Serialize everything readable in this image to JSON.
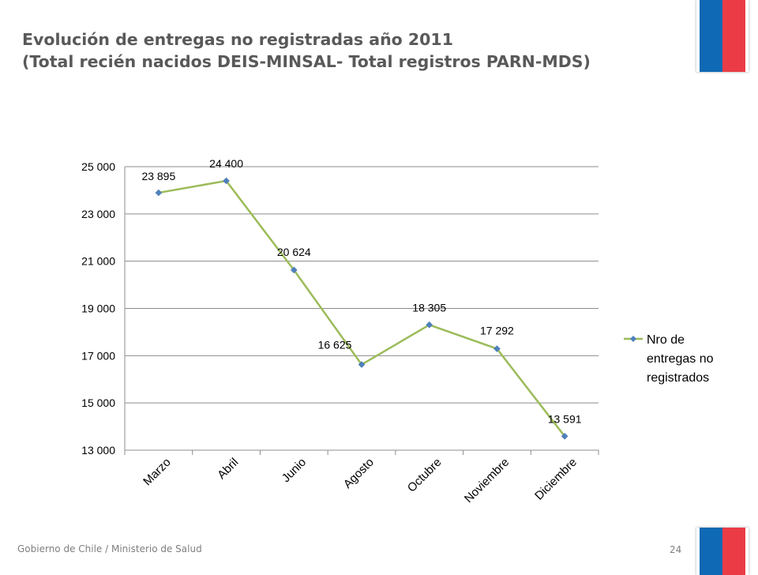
{
  "slide": {
    "title_line1": "Evolución de entregas no registradas año 2011",
    "title_line2": "(Total recién nacidos DEIS-MINSAL- Total registros PARN-MDS)",
    "footer": "Gobierno de Chile / Ministerio de Salud",
    "page_number": "24"
  },
  "colors": {
    "flag_blue": "#0f69b4",
    "flag_red": "#eb3c46",
    "line": "#9bbb59",
    "marker": "#4f81bd"
  },
  "chart_data": {
    "type": "line",
    "categories": [
      "Marzo",
      "Abril",
      "Junio",
      "Agosto",
      "Octubre",
      "Noviembre",
      "Diciembre"
    ],
    "series": [
      {
        "name": "Nro de entregas no registrados",
        "values": [
          23895,
          24400,
          20624,
          16625,
          18305,
          17292,
          13591
        ],
        "labels": [
          "23 895",
          "24 400",
          "20 624",
          "16 625",
          "18 305",
          "17 292",
          "13 591"
        ]
      }
    ],
    "legend_lines": [
      "Nro de",
      "entregas no",
      "registrados"
    ],
    "y_ticks": [
      "13 000",
      "15 000",
      "17 000",
      "19 000",
      "21 000",
      "23 000",
      "25 000"
    ],
    "ylim": [
      13000,
      25000
    ],
    "y_step": 2000,
    "grid": true,
    "legend": "right"
  }
}
